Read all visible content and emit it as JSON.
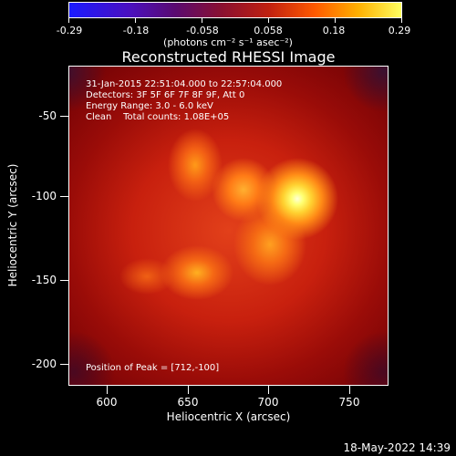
{
  "colorbar": {
    "ticks": [
      "-0.29",
      "-0.18",
      "-0.058",
      "0.058",
      "0.18",
      "0.29"
    ],
    "units": "(photons cm⁻² s⁻¹ asec⁻²)"
  },
  "title": "Reconstructed RHESSI Image",
  "annotations": {
    "time": "31-Jan-2015 22:51:04.000 to 22:57:04.000",
    "detectors": "Detectors: 3F 5F 6F 7F 8F 9F, Att 0",
    "energy": "Energy Range: 3.0 - 6.0 keV",
    "clean": "Clean    Total counts: 1.08E+05",
    "peak": "Position of Peak = [712,-100]"
  },
  "axes": {
    "xlabel": "Heliocentric X (arcsec)",
    "ylabel": "Heliocentric Y (arcsec)",
    "xticks": [
      "600",
      "650",
      "700",
      "750"
    ],
    "yticks": [
      "-50",
      "-100",
      "-150",
      "-200"
    ]
  },
  "footer": {
    "date": "18-May-2022 14:39"
  },
  "colors": {
    "background": "#000000",
    "text": "#ffffff"
  }
}
